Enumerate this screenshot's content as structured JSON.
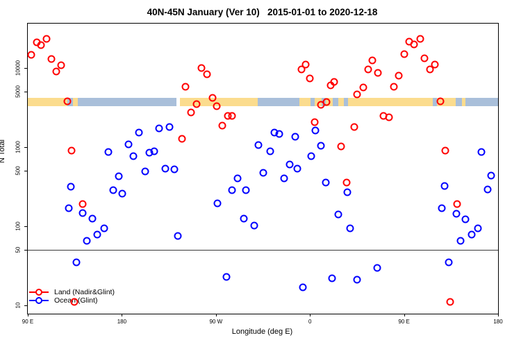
{
  "title": "40N-45N January (Ver 10)   2015-01-01 to 2020-12-18",
  "chart_data": {
    "type": "scatter",
    "title": "40N-45N January (Ver 10)   2015-01-01 to 2020-12-18",
    "xlabel": "Longitude (deg E)",
    "ylabel": "N Total",
    "x_axis": {
      "note": "axis runs 90E eastward through 180, 90W, 0, 90E to 180; stored as 90..540 continuous degrees",
      "range": [
        90,
        540
      ],
      "ticks": [
        {
          "lon": 90,
          "label": "90 E"
        },
        {
          "lon": 180,
          "label": "180"
        },
        {
          "lon": 270,
          "label": "90 W"
        },
        {
          "lon": 360,
          "label": "0"
        },
        {
          "lon": 450,
          "label": "90 E"
        },
        {
          "lon": 540,
          "label": "180"
        }
      ]
    },
    "y_axis": {
      "scale": "log",
      "range": [
        8.5,
        28000
      ],
      "ticks": [
        10,
        50,
        100,
        500,
        1000,
        5000,
        10000
      ]
    },
    "reference_line_y": 50,
    "map_strip": {
      "description": "land/ocean band for the 40N-45N latitude strip",
      "value_top": 4200,
      "value_bottom": 3300,
      "land_color": "#FBDC8E",
      "ocean_color": "#A9BFDA",
      "segments": [
        {
          "from": 90,
          "to": 128,
          "type": "land"
        },
        {
          "from": 128,
          "to": 133.2,
          "type": "ocean"
        },
        {
          "from": 133.2,
          "to": 137.9,
          "type": "land"
        },
        {
          "from": 137.9,
          "to": 232.3,
          "type": "ocean"
        },
        {
          "from": 235.6,
          "to": 310,
          "type": "land"
        },
        {
          "from": 310,
          "to": 349.9,
          "type": "ocean"
        },
        {
          "from": 349.9,
          "to": 360.5,
          "type": "land"
        },
        {
          "from": 360.5,
          "to": 364.5,
          "type": "ocean"
        },
        {
          "from": 364.5,
          "to": 371.2,
          "type": "land"
        },
        {
          "from": 371.2,
          "to": 375.2,
          "type": "ocean"
        },
        {
          "from": 375.2,
          "to": 381.8,
          "type": "land"
        },
        {
          "from": 381.8,
          "to": 387.1,
          "type": "ocean"
        },
        {
          "from": 387.1,
          "to": 392.4,
          "type": "land"
        },
        {
          "from": 392.4,
          "to": 396.4,
          "type": "ocean"
        },
        {
          "from": 396.4,
          "to": 477.5,
          "type": "land"
        },
        {
          "from": 477.5,
          "to": 481.5,
          "type": "ocean"
        },
        {
          "from": 481.5,
          "to": 499.5,
          "type": "land"
        },
        {
          "from": 499.5,
          "to": 540,
          "type": "ocean"
        },
        {
          "from": 505.5,
          "to": 509,
          "type": "land"
        }
      ]
    },
    "series": [
      {
        "name": "Land (Nadir&Glint)",
        "color": "#FF0000",
        "points": [
          [
            98.5,
            21000
          ],
          [
            107.8,
            23300
          ],
          [
            102.5,
            19500
          ],
          [
            93.3,
            14600
          ],
          [
            112.9,
            12900
          ],
          [
            121.8,
            10900
          ],
          [
            117.3,
            9100
          ],
          [
            128.0,
            3770
          ],
          [
            131.8,
            900
          ],
          [
            142.8,
            190
          ],
          [
            134.5,
            11
          ],
          [
            240.9,
            5850
          ],
          [
            256.1,
            10000
          ],
          [
            261.7,
            8400
          ],
          [
            266.8,
            4170
          ],
          [
            251.7,
            3520
          ],
          [
            246.1,
            2730
          ],
          [
            270.6,
            3300
          ],
          [
            281.2,
            2500
          ],
          [
            285.7,
            2500
          ],
          [
            276.1,
            1870
          ],
          [
            237.6,
            1280
          ],
          [
            351.6,
            9660
          ],
          [
            356.1,
            11100
          ],
          [
            360.1,
            7380
          ],
          [
            380.1,
            6000
          ],
          [
            383.4,
            6680
          ],
          [
            370.5,
            3450
          ],
          [
            376.1,
            3700
          ],
          [
            364.7,
            2090
          ],
          [
            390.0,
            1030
          ],
          [
            402.3,
            1790
          ],
          [
            395.3,
            355
          ],
          [
            430.0,
            2460
          ],
          [
            435.6,
            2400
          ],
          [
            454.9,
            21500
          ],
          [
            465.3,
            23500
          ],
          [
            459.8,
            19900
          ],
          [
            450.4,
            14900
          ],
          [
            420.0,
            12600
          ],
          [
            469.3,
            13300
          ],
          [
            479.3,
            11000
          ],
          [
            475.1,
            9600
          ],
          [
            416.0,
            9700
          ],
          [
            425.0,
            8600
          ],
          [
            445.0,
            8000
          ],
          [
            440.0,
            5830
          ],
          [
            411.1,
            5700
          ],
          [
            405.3,
            4670
          ],
          [
            484.9,
            3770
          ],
          [
            489.8,
            900
          ],
          [
            500.9,
            190
          ],
          [
            494.2,
            11
          ]
        ]
      },
      {
        "name": "Ocean (Glint)",
        "color": "#0000FF",
        "points": [
          [
            215.7,
            1710
          ],
          [
            225.7,
            1790
          ],
          [
            196.6,
            1530
          ],
          [
            186.6,
            1080
          ],
          [
            167.3,
            863
          ],
          [
            191.1,
            764
          ],
          [
            206.1,
            845
          ],
          [
            211.3,
            891
          ],
          [
            221.7,
            538
          ],
          [
            230.1,
            521
          ],
          [
            202.4,
            493
          ],
          [
            176.8,
            431
          ],
          [
            131.3,
            314
          ],
          [
            171.7,
            288
          ],
          [
            180.6,
            260
          ],
          [
            129.1,
            169
          ],
          [
            142.8,
            147
          ],
          [
            151.8,
            125
          ],
          [
            162.8,
            94
          ],
          [
            156.6,
            78
          ],
          [
            146.8,
            65
          ],
          [
            233.9,
            76
          ],
          [
            136.2,
            35
          ],
          [
            325.7,
            1530
          ],
          [
            330.5,
            1480
          ],
          [
            345.7,
            1360
          ],
          [
            365.0,
            1630
          ],
          [
            311.0,
            1070
          ],
          [
            321.7,
            881
          ],
          [
            370.5,
            1050
          ],
          [
            361.2,
            764
          ],
          [
            340.5,
            607
          ],
          [
            347.9,
            531
          ],
          [
            315.4,
            476
          ],
          [
            335.6,
            403
          ],
          [
            291.0,
            403
          ],
          [
            375.0,
            359
          ],
          [
            285.7,
            284
          ],
          [
            299.0,
            284
          ],
          [
            271.7,
            196
          ],
          [
            296.6,
            126
          ],
          [
            306.8,
            102
          ],
          [
            395.8,
            271
          ],
          [
            524.3,
            863
          ],
          [
            533.4,
            434
          ],
          [
            530.1,
            294
          ],
          [
            488.8,
            320
          ],
          [
            486.2,
            168
          ],
          [
            500.2,
            145
          ],
          [
            509.0,
            122
          ],
          [
            387.1,
            141
          ],
          [
            398.6,
            95
          ],
          [
            520.5,
            94
          ],
          [
            514.6,
            79
          ],
          [
            503.9,
            65
          ],
          [
            424.2,
            30
          ],
          [
            405.3,
            21
          ],
          [
            492.8,
            35
          ],
          [
            280.1,
            23
          ],
          [
            353.3,
            17
          ],
          [
            381.0,
            22
          ]
        ]
      }
    ],
    "legend": {
      "position": "bottom-left",
      "items": [
        "Land (Nadir&Glint)",
        "Ocean (Glint)"
      ]
    }
  }
}
